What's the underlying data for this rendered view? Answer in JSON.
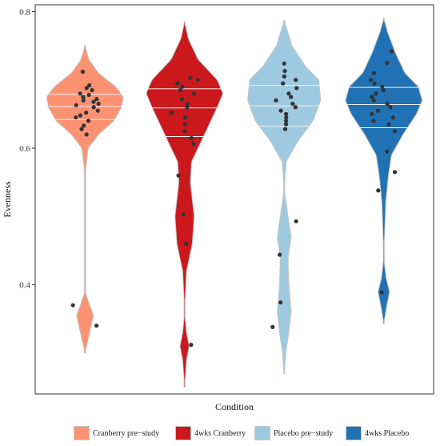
{
  "chart_data": {
    "type": "violin",
    "xlabel": "Condition",
    "ylabel": "Evenness",
    "ylim": [
      0.24,
      0.81
    ],
    "yticks": [
      0.4,
      0.6,
      0.8
    ],
    "yticklabels": [
      "0.4",
      "0.6",
      "0.8"
    ],
    "grid": false,
    "legend_position": "bottom",
    "groups": [
      {
        "name": "Cranberry pre−study",
        "color": "#FC9272",
        "range": [
          0.3,
          0.75
        ],
        "quartiles": [
          0.642,
          0.661,
          0.679
        ],
        "density": [
          [
            0.3,
            0.0
          ],
          [
            0.33,
            0.12
          ],
          [
            0.355,
            0.22
          ],
          [
            0.37,
            0.12
          ],
          [
            0.39,
            0.0
          ],
          [
            0.56,
            0.0
          ],
          [
            0.6,
            0.08
          ],
          [
            0.62,
            0.35
          ],
          [
            0.64,
            0.75
          ],
          [
            0.66,
            0.95
          ],
          [
            0.675,
            1.0
          ],
          [
            0.69,
            0.8
          ],
          [
            0.71,
            0.35
          ],
          [
            0.73,
            0.1
          ],
          [
            0.75,
            0.0
          ]
        ],
        "points": [
          0.34,
          0.37,
          0.62,
          0.628,
          0.633,
          0.64,
          0.645,
          0.648,
          0.652,
          0.655,
          0.66,
          0.663,
          0.665,
          0.668,
          0.67,
          0.672,
          0.675,
          0.678,
          0.68,
          0.685,
          0.688,
          0.692,
          0.712
        ]
      },
      {
        "name": "4wks Cranberry",
        "color": "#CB181D",
        "range": [
          0.25,
          0.785
        ],
        "quartiles": [
          0.617,
          0.659,
          0.687
        ],
        "density": [
          [
            0.25,
            0.0
          ],
          [
            0.29,
            0.05
          ],
          [
            0.31,
            0.12
          ],
          [
            0.33,
            0.05
          ],
          [
            0.36,
            0.0
          ],
          [
            0.42,
            0.05
          ],
          [
            0.46,
            0.2
          ],
          [
            0.5,
            0.25
          ],
          [
            0.55,
            0.15
          ],
          [
            0.58,
            0.18
          ],
          [
            0.6,
            0.35
          ],
          [
            0.63,
            0.6
          ],
          [
            0.66,
            0.85
          ],
          [
            0.68,
            1.0
          ],
          [
            0.7,
            0.85
          ],
          [
            0.73,
            0.35
          ],
          [
            0.76,
            0.1
          ],
          [
            0.785,
            0.0
          ]
        ],
        "points": [
          0.312,
          0.46,
          0.503,
          0.56,
          0.606,
          0.615,
          0.625,
          0.635,
          0.645,
          0.652,
          0.66,
          0.665,
          0.672,
          0.68,
          0.685,
          0.69,
          0.695,
          0.7,
          0.703
        ]
      },
      {
        "name": "Placebo pre−study",
        "color": "#9ECAE1",
        "range": [
          0.27,
          0.787
        ],
        "quartiles": [
          0.632,
          0.662,
          0.692
        ],
        "density": [
          [
            0.27,
            0.0
          ],
          [
            0.3,
            0.04
          ],
          [
            0.33,
            0.12
          ],
          [
            0.36,
            0.18
          ],
          [
            0.4,
            0.12
          ],
          [
            0.44,
            0.1
          ],
          [
            0.47,
            0.18
          ],
          [
            0.5,
            0.1
          ],
          [
            0.54,
            0.0
          ],
          [
            0.58,
            0.05
          ],
          [
            0.61,
            0.35
          ],
          [
            0.64,
            0.75
          ],
          [
            0.67,
            0.95
          ],
          [
            0.7,
            0.9
          ],
          [
            0.72,
            0.55
          ],
          [
            0.75,
            0.2
          ],
          [
            0.787,
            0.0
          ]
        ],
        "points": [
          0.338,
          0.374,
          0.444,
          0.493,
          0.628,
          0.635,
          0.64,
          0.645,
          0.65,
          0.655,
          0.66,
          0.665,
          0.67,
          0.675,
          0.68,
          0.688,
          0.695,
          0.7,
          0.705,
          0.713,
          0.724
        ]
      },
      {
        "name": "4wks Placebo",
        "color": "#2171B5",
        "range": [
          0.343,
          0.79
        ],
        "quartiles": [
          0.63,
          0.664,
          0.689
        ],
        "density": [
          [
            0.343,
            0.0
          ],
          [
            0.37,
            0.08
          ],
          [
            0.39,
            0.15
          ],
          [
            0.41,
            0.06
          ],
          [
            0.44,
            0.0
          ],
          [
            0.52,
            0.05
          ],
          [
            0.56,
            0.12
          ],
          [
            0.59,
            0.2
          ],
          [
            0.62,
            0.5
          ],
          [
            0.65,
            0.85
          ],
          [
            0.67,
            1.0
          ],
          [
            0.69,
            0.9
          ],
          [
            0.71,
            0.55
          ],
          [
            0.74,
            0.3
          ],
          [
            0.77,
            0.1
          ],
          [
            0.79,
            0.0
          ]
        ],
        "points": [
          0.389,
          0.538,
          0.565,
          0.595,
          0.625,
          0.635,
          0.64,
          0.645,
          0.65,
          0.655,
          0.66,
          0.665,
          0.67,
          0.675,
          0.68,
          0.685,
          0.69,
          0.695,
          0.7,
          0.71,
          0.725,
          0.742
        ]
      }
    ]
  }
}
